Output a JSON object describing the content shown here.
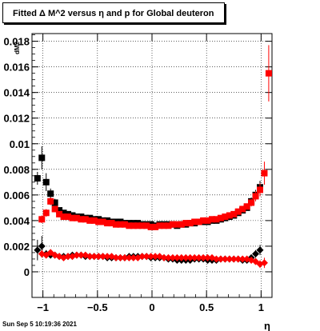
{
  "title": "Fitted Δ M^2 versus η and p for Global deuteron",
  "timestamp": "Sun Sep  5 10:19:36 2021",
  "chart_data": {
    "type": "scatter",
    "title": "Fitted Δ M^2 versus η and p for Global deuteron",
    "xlabel": "η",
    "ylabel": "dM2",
    "xlim": [
      -1.1,
      1.1
    ],
    "ylim": [
      -0.002,
      0.0186
    ],
    "grid": true,
    "x_ticks": [
      "−1",
      "−0.5",
      "0",
      "0.5",
      "1"
    ],
    "y_ticks": [
      "0",
      "0.002",
      "0.004",
      "0.006",
      "0.008",
      "0.01",
      "0.012",
      "0.014",
      "0.016",
      "0.018"
    ],
    "series": [
      {
        "color": "#000000",
        "marker": "square",
        "points": [
          [
            -1.05,
            0.0073,
            0.0005
          ],
          [
            -1.01,
            0.0089,
            0.0009
          ],
          [
            -0.97,
            0.007,
            0.0007
          ],
          [
            -0.93,
            0.0061,
            0.0004
          ],
          [
            -0.89,
            0.0054,
            0.0003
          ],
          [
            -0.85,
            0.0048,
            0.0002
          ],
          [
            -0.81,
            0.0046,
            0.0002
          ],
          [
            -0.77,
            0.0045,
            0.0002
          ],
          [
            -0.73,
            0.0044,
            0.0002
          ],
          [
            -0.69,
            0.0043,
            0.0002
          ],
          [
            -0.65,
            0.0043,
            0.0002
          ],
          [
            -0.61,
            0.0042,
            0.0002
          ],
          [
            -0.57,
            0.0042,
            0.0002
          ],
          [
            -0.53,
            0.0041,
            0.0002
          ],
          [
            -0.49,
            0.0041,
            0.0002
          ],
          [
            -0.45,
            0.004,
            0.0002
          ],
          [
            -0.41,
            0.004,
            0.0002
          ],
          [
            -0.37,
            0.0039,
            0.0002
          ],
          [
            -0.33,
            0.0039,
            0.0002
          ],
          [
            -0.29,
            0.0039,
            0.0002
          ],
          [
            -0.25,
            0.0038,
            0.0002
          ],
          [
            -0.21,
            0.0038,
            0.0002
          ],
          [
            -0.17,
            0.0038,
            0.0002
          ],
          [
            -0.13,
            0.0038,
            0.0002
          ],
          [
            -0.09,
            0.0037,
            0.0002
          ],
          [
            -0.05,
            0.0037,
            0.0002
          ],
          [
            -0.01,
            0.0037,
            0.0002
          ],
          [
            0.03,
            0.0036,
            0.0002
          ],
          [
            0.07,
            0.0037,
            0.0002
          ],
          [
            0.11,
            0.0037,
            0.0002
          ],
          [
            0.15,
            0.0037,
            0.0002
          ],
          [
            0.19,
            0.0037,
            0.0002
          ],
          [
            0.23,
            0.0036,
            0.0002
          ],
          [
            0.27,
            0.0037,
            0.0002
          ],
          [
            0.31,
            0.0037,
            0.0002
          ],
          [
            0.35,
            0.0038,
            0.0002
          ],
          [
            0.39,
            0.0038,
            0.0002
          ],
          [
            0.43,
            0.0039,
            0.0002
          ],
          [
            0.47,
            0.0039,
            0.0002
          ],
          [
            0.51,
            0.0039,
            0.0002
          ],
          [
            0.55,
            0.004,
            0.0002
          ],
          [
            0.59,
            0.004,
            0.0002
          ],
          [
            0.63,
            0.0041,
            0.0002
          ],
          [
            0.67,
            0.0042,
            0.0002
          ],
          [
            0.71,
            0.0043,
            0.0002
          ],
          [
            0.75,
            0.0044,
            0.0002
          ],
          [
            0.79,
            0.0046,
            0.0002
          ],
          [
            0.83,
            0.0048,
            0.0002
          ],
          [
            0.87,
            0.005,
            0.0002
          ],
          [
            0.91,
            0.0055,
            0.0003
          ],
          [
            0.95,
            0.006,
            0.0004
          ],
          [
            0.99,
            0.0066,
            0.0005
          ]
        ]
      },
      {
        "color": "#ff0000",
        "marker": "square",
        "points": [
          [
            -1.01,
            0.0041,
            0.0003
          ],
          [
            -0.97,
            0.0046,
            0.0003
          ],
          [
            -0.93,
            0.0055,
            0.0003
          ],
          [
            -0.89,
            0.0049,
            0.0002
          ],
          [
            -0.85,
            0.0045,
            0.0002
          ],
          [
            -0.81,
            0.0043,
            0.0002
          ],
          [
            -0.77,
            0.0043,
            0.0002
          ],
          [
            -0.73,
            0.0042,
            0.0002
          ],
          [
            -0.69,
            0.0042,
            0.0002
          ],
          [
            -0.65,
            0.0041,
            0.0002
          ],
          [
            -0.61,
            0.0041,
            0.0002
          ],
          [
            -0.57,
            0.004,
            0.0002
          ],
          [
            -0.53,
            0.004,
            0.0002
          ],
          [
            -0.49,
            0.0039,
            0.0002
          ],
          [
            -0.45,
            0.0039,
            0.0002
          ],
          [
            -0.41,
            0.0038,
            0.0002
          ],
          [
            -0.37,
            0.0038,
            0.0002
          ],
          [
            -0.33,
            0.0037,
            0.0002
          ],
          [
            -0.29,
            0.0037,
            0.0002
          ],
          [
            -0.25,
            0.0037,
            0.0002
          ],
          [
            -0.21,
            0.0036,
            0.0002
          ],
          [
            -0.17,
            0.0036,
            0.0002
          ],
          [
            -0.13,
            0.0036,
            0.0002
          ],
          [
            -0.09,
            0.0036,
            0.0002
          ],
          [
            -0.05,
            0.0036,
            0.0002
          ],
          [
            -0.01,
            0.0035,
            0.0002
          ],
          [
            0.03,
            0.0035,
            0.0002
          ],
          [
            0.07,
            0.0036,
            0.0002
          ],
          [
            0.11,
            0.0036,
            0.0002
          ],
          [
            0.15,
            0.0036,
            0.0002
          ],
          [
            0.19,
            0.0037,
            0.0002
          ],
          [
            0.23,
            0.0037,
            0.0002
          ],
          [
            0.27,
            0.0037,
            0.0002
          ],
          [
            0.31,
            0.0038,
            0.0002
          ],
          [
            0.35,
            0.0038,
            0.0002
          ],
          [
            0.39,
            0.0039,
            0.0002
          ],
          [
            0.43,
            0.0039,
            0.0002
          ],
          [
            0.47,
            0.004,
            0.0002
          ],
          [
            0.51,
            0.004,
            0.0002
          ],
          [
            0.55,
            0.0041,
            0.0002
          ],
          [
            0.59,
            0.0041,
            0.0002
          ],
          [
            0.63,
            0.0042,
            0.0002
          ],
          [
            0.67,
            0.0043,
            0.0002
          ],
          [
            0.71,
            0.0044,
            0.0002
          ],
          [
            0.75,
            0.0045,
            0.0002
          ],
          [
            0.79,
            0.0047,
            0.0002
          ],
          [
            0.83,
            0.0049,
            0.0002
          ],
          [
            0.87,
            0.0051,
            0.0002
          ],
          [
            0.91,
            0.0054,
            0.0003
          ],
          [
            0.95,
            0.0059,
            0.0004
          ],
          [
            0.99,
            0.0064,
            0.0005
          ],
          [
            1.03,
            0.0077,
            0.0009
          ],
          [
            1.07,
            0.0155,
            0.0022
          ]
        ]
      },
      {
        "color": "#000000",
        "marker": "diamond",
        "points": [
          [
            -1.05,
            0.0017,
            0.0008
          ],
          [
            -1.01,
            0.002,
            0.0008
          ],
          [
            -0.97,
            0.0014,
            0.0003
          ],
          [
            -0.93,
            0.0013,
            0.0002
          ],
          [
            -0.89,
            0.0013,
            0.0002
          ],
          [
            -0.85,
            0.0012,
            0.0001
          ],
          [
            -0.81,
            0.0012,
            0.0001
          ],
          [
            -0.77,
            0.0012,
            0.0001
          ],
          [
            -0.73,
            0.0013,
            0.0001
          ],
          [
            -0.69,
            0.0013,
            0.0001
          ],
          [
            -0.65,
            0.0013,
            0.0001
          ],
          [
            -0.61,
            0.0012,
            0.0001
          ],
          [
            -0.57,
            0.0012,
            0.0001
          ],
          [
            -0.53,
            0.0012,
            0.0001
          ],
          [
            -0.49,
            0.0012,
            0.0001
          ],
          [
            -0.45,
            0.0012,
            0.0001
          ],
          [
            -0.41,
            0.0011,
            0.0001
          ],
          [
            -0.37,
            0.0011,
            0.0001
          ],
          [
            -0.33,
            0.0011,
            0.0001
          ],
          [
            -0.29,
            0.0011,
            0.0001
          ],
          [
            -0.25,
            0.0011,
            0.0001
          ],
          [
            -0.21,
            0.0012,
            0.0001
          ],
          [
            -0.17,
            0.0012,
            0.0001
          ],
          [
            -0.13,
            0.0012,
            0.0001
          ],
          [
            -0.09,
            0.0012,
            0.0001
          ],
          [
            -0.05,
            0.0012,
            0.0001
          ],
          [
            -0.01,
            0.0011,
            0.0001
          ],
          [
            0.03,
            0.0011,
            0.0001
          ],
          [
            0.07,
            0.0011,
            0.0001
          ],
          [
            0.11,
            0.0011,
            0.0001
          ],
          [
            0.15,
            0.001,
            0.0001
          ],
          [
            0.19,
            0.001,
            0.0001
          ],
          [
            0.23,
            0.0009,
            0.0001
          ],
          [
            0.27,
            0.0009,
            0.0001
          ],
          [
            0.31,
            0.0009,
            0.0001
          ],
          [
            0.35,
            0.0009,
            0.0001
          ],
          [
            0.39,
            0.001,
            0.0001
          ],
          [
            0.43,
            0.001,
            0.0001
          ],
          [
            0.47,
            0.001,
            0.0001
          ],
          [
            0.51,
            0.0009,
            0.0001
          ],
          [
            0.55,
            0.0009,
            0.0001
          ],
          [
            0.59,
            0.0009,
            0.0001
          ],
          [
            0.63,
            0.001,
            0.0001
          ],
          [
            0.67,
            0.001,
            0.0001
          ],
          [
            0.71,
            0.001,
            0.0001
          ],
          [
            0.75,
            0.001,
            0.0001
          ],
          [
            0.79,
            0.001,
            0.0001
          ],
          [
            0.83,
            0.0009,
            0.0001
          ],
          [
            0.87,
            0.0009,
            0.0001
          ],
          [
            0.91,
            0.0011,
            0.0002
          ],
          [
            0.95,
            0.0014,
            0.0003
          ],
          [
            0.99,
            0.0017,
            0.0004
          ]
        ]
      },
      {
        "color": "#ff0000",
        "marker": "diamond",
        "points": [
          [
            -1.01,
            0.0014,
            0.0003
          ],
          [
            -0.97,
            0.0013,
            0.0002
          ],
          [
            -0.93,
            0.0015,
            0.0002
          ],
          [
            -0.89,
            0.0013,
            0.0001
          ],
          [
            -0.85,
            0.0012,
            0.0001
          ],
          [
            -0.81,
            0.0011,
            0.0001
          ],
          [
            -0.77,
            0.0012,
            0.0001
          ],
          [
            -0.73,
            0.0012,
            0.0001
          ],
          [
            -0.69,
            0.0013,
            0.0001
          ],
          [
            -0.65,
            0.0013,
            0.0001
          ],
          [
            -0.61,
            0.0013,
            0.0001
          ],
          [
            -0.57,
            0.0012,
            0.0001
          ],
          [
            -0.53,
            0.0012,
            0.0001
          ],
          [
            -0.49,
            0.0012,
            0.0001
          ],
          [
            -0.45,
            0.0012,
            0.0001
          ],
          [
            -0.41,
            0.0012,
            0.0001
          ],
          [
            -0.37,
            0.0012,
            0.0001
          ],
          [
            -0.33,
            0.0011,
            0.0001
          ],
          [
            -0.29,
            0.0011,
            0.0001
          ],
          [
            -0.25,
            0.0011,
            0.0001
          ],
          [
            -0.21,
            0.0011,
            0.0001
          ],
          [
            -0.17,
            0.0011,
            0.0001
          ],
          [
            -0.13,
            0.0011,
            0.0001
          ],
          [
            -0.09,
            0.0012,
            0.0001
          ],
          [
            -0.05,
            0.0012,
            0.0001
          ],
          [
            -0.01,
            0.0012,
            0.0001
          ],
          [
            0.03,
            0.0012,
            0.0001
          ],
          [
            0.07,
            0.0012,
            0.0001
          ],
          [
            0.11,
            0.0011,
            0.0001
          ],
          [
            0.15,
            0.0011,
            0.0001
          ],
          [
            0.19,
            0.0011,
            0.0001
          ],
          [
            0.23,
            0.0011,
            0.0001
          ],
          [
            0.27,
            0.0011,
            0.0001
          ],
          [
            0.31,
            0.0011,
            0.0001
          ],
          [
            0.35,
            0.0011,
            0.0001
          ],
          [
            0.39,
            0.0011,
            0.0001
          ],
          [
            0.43,
            0.0011,
            0.0001
          ],
          [
            0.47,
            0.0011,
            0.0001
          ],
          [
            0.51,
            0.0011,
            0.0001
          ],
          [
            0.55,
            0.0011,
            0.0001
          ],
          [
            0.59,
            0.001,
            0.0001
          ],
          [
            0.63,
            0.001,
            0.0001
          ],
          [
            0.67,
            0.001,
            0.0001
          ],
          [
            0.71,
            0.001,
            0.0001
          ],
          [
            0.75,
            0.001,
            0.0001
          ],
          [
            0.79,
            0.001,
            0.0001
          ],
          [
            0.83,
            0.001,
            0.0001
          ],
          [
            0.87,
            0.001,
            0.0001
          ],
          [
            0.91,
            0.0009,
            0.0002
          ],
          [
            0.95,
            0.0008,
            0.0002
          ],
          [
            0.99,
            0.0006,
            0.0003
          ],
          [
            1.03,
            0.0007,
            0.0004
          ]
        ]
      }
    ]
  }
}
